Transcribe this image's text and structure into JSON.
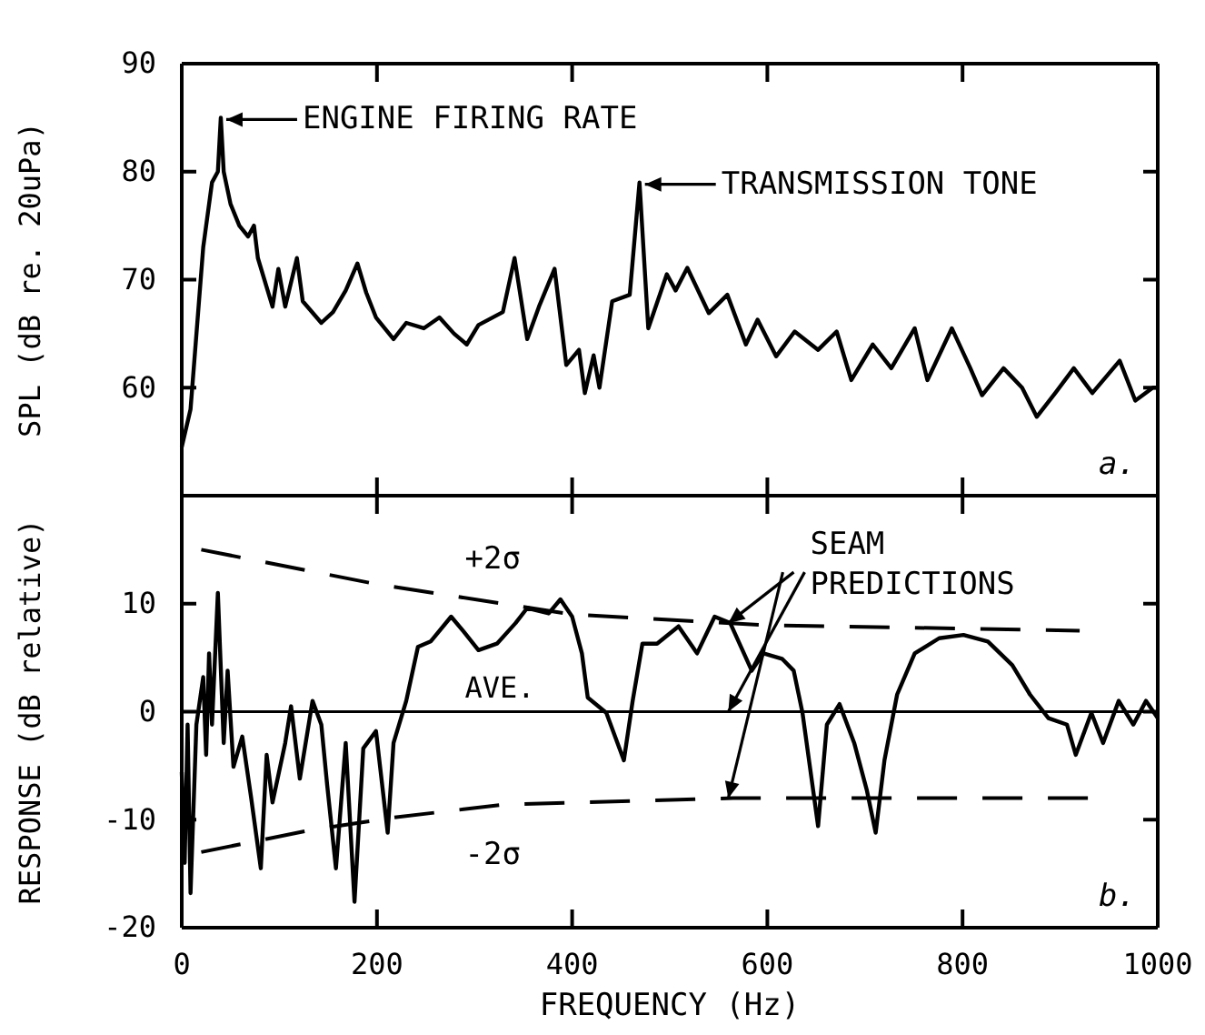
{
  "chart_data": [
    {
      "type": "line",
      "ylabel": "SPL (dB re. 20uPa)",
      "xlim": [
        0,
        1000
      ],
      "xticks": [
        0,
        200,
        400,
        600,
        800,
        1000
      ],
      "ylim": [
        50,
        90
      ],
      "yticks": [
        60,
        70,
        80,
        90
      ],
      "tick_labels": "y",
      "annotations": [
        {
          "text": "ENGINE FIRING RATE",
          "x": 40,
          "y": 85
        },
        {
          "text": "TRANSMISSION TONE",
          "x": 469,
          "y": 79
        },
        "a."
      ],
      "series": [
        {
          "color": "#000000",
          "x": [
            0,
            9,
            22,
            31,
            37,
            40,
            43,
            50,
            59,
            68,
            74,
            78,
            93,
            99,
            106,
            118,
            124,
            143,
            155,
            168,
            180,
            189,
            199,
            217,
            230,
            248,
            264,
            279,
            292,
            304,
            329,
            341,
            354,
            366,
            382,
            394,
            407,
            413,
            422,
            428,
            441,
            459,
            469,
            478,
            497,
            506,
            518,
            540,
            559,
            578,
            590,
            609,
            628,
            652,
            671,
            686,
            708,
            727,
            751,
            764,
            789,
            808,
            820,
            842,
            861,
            876,
            895,
            914,
            933,
            961,
            977,
            995,
            1000
          ],
          "values": [
            54.5,
            58,
            73,
            79,
            80,
            85,
            80,
            77,
            75,
            74,
            75,
            72,
            67.5,
            71,
            67.5,
            72,
            68,
            66,
            67,
            69,
            71.5,
            68.8,
            66.5,
            64.5,
            66,
            65.5,
            66.5,
            65,
            64,
            65.8,
            67,
            72,
            64.5,
            67.5,
            71,
            62.1,
            63.5,
            59.5,
            63,
            60,
            68,
            68.6,
            79,
            65.5,
            70.5,
            69,
            71.1,
            66.9,
            68.6,
            64,
            66.3,
            62.9,
            65.2,
            63.5,
            65.2,
            60.7,
            64,
            61.8,
            65.5,
            60.7,
            65.5,
            61.8,
            59.3,
            61.8,
            60,
            57.3,
            59.5,
            61.8,
            59.5,
            62.5,
            58.8,
            60,
            60
          ]
        }
      ]
    },
    {
      "type": "line",
      "xlabel": "FREQUENCY (Hz)",
      "ylabel": "RESPONSE (dB relative)",
      "xlim": [
        0,
        1000
      ],
      "xticks": [
        0,
        200,
        400,
        600,
        800,
        1000
      ],
      "ylim": [
        -20,
        20
      ],
      "yticks": [
        -20,
        -10,
        0,
        10
      ],
      "ref_lines": [
        {
          "axis": "y",
          "value": 0,
          "label": "AVE."
        }
      ],
      "annotations": [
        {
          "text": "SEAM PREDICTIONS",
          "x": 560,
          "y": 0
        },
        "b."
      ],
      "series": [
        {
          "color": "#000000",
          "x": [
            0,
            3,
            6,
            9,
            15,
            22,
            25,
            28,
            31,
            37,
            43,
            47,
            53,
            62,
            71,
            81,
            87,
            93,
            106,
            112,
            121,
            134,
            143,
            149,
            158,
            168,
            177,
            186,
            199,
            211,
            217,
            230,
            242,
            255,
            276,
            289,
            304,
            323,
            342,
            354,
            376,
            388,
            400,
            410,
            416,
            435,
            453,
            462,
            472,
            487,
            509,
            528,
            546,
            562,
            584,
            596,
            615,
            627,
            636,
            652,
            661,
            674,
            689,
            702,
            711,
            720,
            733,
            751,
            776,
            801,
            826,
            851,
            869,
            888,
            907,
            916,
            932,
            944,
            960,
            975,
            988,
            1000
          ],
          "values": [
            -5.6,
            -14,
            -1.2,
            -16.8,
            -1.2,
            3.2,
            -4,
            5.4,
            -1.2,
            11,
            -2.9,
            3.8,
            -5.1,
            -2.3,
            -7.9,
            -14.5,
            -4,
            -8.4,
            -2.9,
            0.5,
            -6.2,
            1,
            -1.2,
            -6.8,
            -14.5,
            -2.9,
            -17.6,
            -3.4,
            -1.8,
            -11.2,
            -2.9,
            1,
            6,
            6.5,
            8.8,
            7.4,
            5.7,
            6.3,
            8.2,
            9.6,
            9.1,
            10.4,
            8.8,
            5.4,
            1.3,
            -0.1,
            -4.5,
            1,
            6.3,
            6.3,
            7.9,
            5.4,
            8.8,
            8.2,
            3.8,
            5.4,
            4.9,
            3.8,
            -0.1,
            -10.6,
            -1.2,
            0.7,
            -2.9,
            -7.3,
            -11.2,
            -4.5,
            1.6,
            5.4,
            6.8,
            7.1,
            6.5,
            4.3,
            1.6,
            -0.6,
            -1.2,
            -4,
            -0.1,
            -2.9,
            1,
            -1.2,
            1,
            -0.6
          ]
        },
        {
          "name": "+2σ",
          "color": "#000000",
          "line_style": "dashed",
          "x": [
            20,
            200,
            400,
            600,
            800,
            920
          ],
          "values": [
            15,
            11.8,
            9,
            8,
            7.7,
            7.5
          ]
        },
        {
          "name": "-2σ",
          "color": "#000000",
          "line_style": "dashed",
          "x": [
            20,
            130,
            217,
            330,
            565,
            800,
            930
          ],
          "values": [
            -13,
            -11,
            -9.8,
            -8.6,
            -8,
            -8,
            -8
          ]
        }
      ]
    }
  ]
}
